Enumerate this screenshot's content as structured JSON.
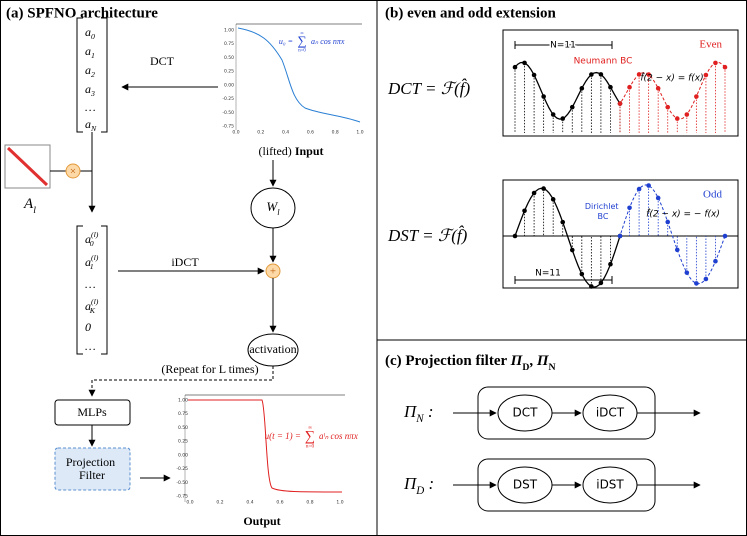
{
  "panel_a": {
    "title": "(a) SPFNO architecture",
    "vector_in": [
      {
        "base": "a",
        "sub": "0"
      },
      {
        "base": "a",
        "sub": "1"
      },
      {
        "base": "a",
        "sub": "2"
      },
      {
        "base": "a",
        "sub": "3"
      },
      "…",
      {
        "base": "a",
        "sub": "N"
      }
    ],
    "dct_label": "DCT",
    "matrix_label": {
      "base": "A",
      "sub": "l"
    },
    "multiply": "×",
    "vector_out": [
      {
        "base": "a",
        "sup": "(l)",
        "sub": "0"
      },
      {
        "base": "a",
        "sup": "(l)",
        "sub": "1"
      },
      "…",
      {
        "base": "a",
        "sup": "(l)",
        "sub": "K"
      },
      "0",
      "…"
    ],
    "idct_label": "iDCT",
    "input_plot": {
      "xticks": [
        "0.0",
        "0.2",
        "0.4",
        "0.6",
        "0.8",
        "1.0"
      ],
      "yticks": [
        "1.00",
        "0.75",
        "0.50",
        "0.25",
        "0.00",
        "-0.25",
        "-0.50",
        "-0.75"
      ],
      "formula": {
        "lhs": "u₀ =",
        "sum": "∑",
        "upper": "∞",
        "lower": "n=0",
        "rhs": "aₙ cos nπx"
      }
    },
    "input_caption": {
      "prefix": "(lifted) ",
      "base": "Input"
    },
    "weight": {
      "base": "W",
      "sub": "l"
    },
    "plus": "+",
    "activation": "activation",
    "repeat": "(Repeat for L times)",
    "mlps": "MLPs",
    "projection": [
      "Projection",
      "Filter"
    ],
    "output_plot": {
      "xticks": [
        "0.0",
        "0.2",
        "0.4",
        "0.6",
        "0.8",
        "1.0"
      ],
      "yticks": [
        "1.00",
        "0.75",
        "0.50",
        "0.25",
        "0.00",
        "-0.25",
        "-0.50",
        "-0.75"
      ],
      "formula": {
        "lhs": "u(t = 1) =",
        "sum": "∑",
        "upper": "∞",
        "lower": "n=0",
        "rhs": "aˡₙ cos nπx"
      }
    },
    "output_caption": "Output"
  },
  "panel_b": {
    "title": "(b) even and odd extension",
    "dct_eq": "DCT = ℱ(f̂)",
    "dst_eq": "DST = ℱ(f̂)",
    "even": {
      "n_label": "N=11",
      "tag": "Even",
      "bc": "Neumann BC",
      "formula": "f̂(2 − x) = f(x)"
    },
    "odd": {
      "n_label": "N=11",
      "tag": "Odd",
      "bc": [
        "Dirichlet",
        "BC"
      ],
      "formula": "f̂(2 − x) = − f(x)"
    }
  },
  "panel_c": {
    "title": {
      "prefix": "(c) Projection filter ",
      "terms": [
        {
          "base": "Π",
          "sub": "D",
          "suffix": ", "
        },
        {
          "base": "Π",
          "sub": "N"
        }
      ]
    },
    "rows": [
      {
        "label": {
          "base": "Π",
          "sub": "N",
          "suffix": " :"
        },
        "first": "DCT",
        "second": "iDCT"
      },
      {
        "label": {
          "base": "Π",
          "sub": "D",
          "suffix": " :"
        },
        "first": "DST",
        "second": "iDST"
      }
    ]
  }
}
